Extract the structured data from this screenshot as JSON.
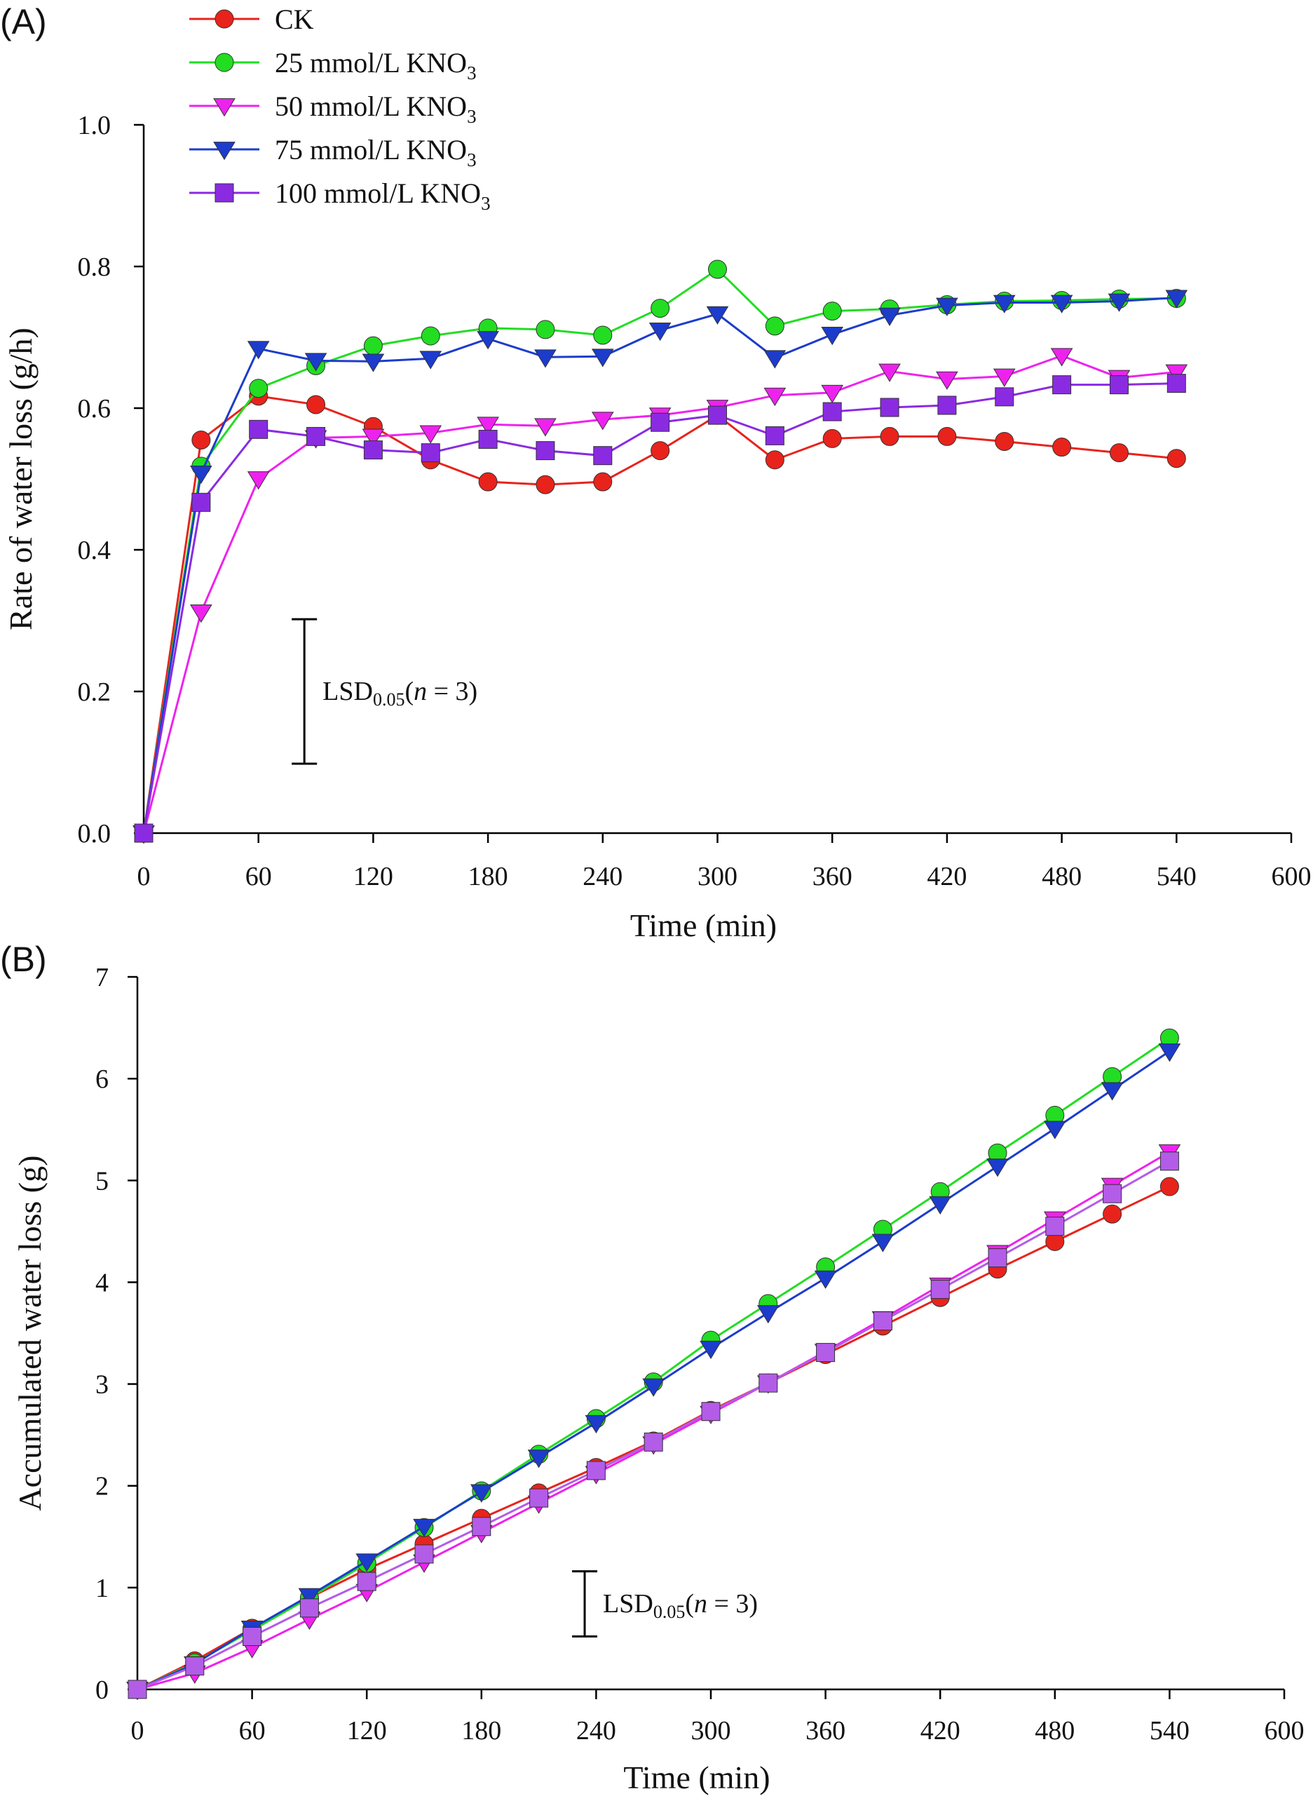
{
  "figure": {
    "panels": [
      {
        "label": "(A)"
      },
      {
        "label": "(B)"
      }
    ]
  },
  "chart_data": [
    {
      "type": "line",
      "panel": "(A)",
      "title": "",
      "xlabel": "Time (min)",
      "ylabel": "Rate of water loss (g/h)",
      "xlim": [
        0,
        600
      ],
      "ylim": [
        0,
        1.0
      ],
      "xticks": [
        0,
        60,
        120,
        180,
        240,
        300,
        360,
        420,
        480,
        540,
        600
      ],
      "yticks": [
        0.0,
        0.2,
        0.4,
        0.6,
        0.8,
        1.0
      ],
      "ytick_labels": [
        "0.0",
        "0.2",
        "0.4",
        "0.6",
        "0.8",
        "1.0"
      ],
      "x": [
        0,
        30,
        60,
        90,
        120,
        150,
        180,
        210,
        240,
        270,
        300,
        330,
        360,
        390,
        420,
        450,
        480,
        510,
        540
      ],
      "legend_position": "top-left",
      "series": [
        {
          "name": "CK",
          "name_sub": "",
          "color": "#e8231c",
          "marker": "circle",
          "values": [
            0,
            0.555,
            0.617,
            0.605,
            0.574,
            0.527,
            0.496,
            0.492,
            0.496,
            0.54,
            0.59,
            0.527,
            0.557,
            0.56,
            0.56,
            0.553,
            0.545,
            0.537,
            0.529
          ]
        },
        {
          "name": "25 mmol/L KNO",
          "name_sub": "3",
          "color": "#22dd22",
          "marker": "circle",
          "values": [
            0,
            0.518,
            0.628,
            0.66,
            0.688,
            0.702,
            0.713,
            0.711,
            0.703,
            0.741,
            0.796,
            0.716,
            0.737,
            0.74,
            0.746,
            0.751,
            0.752,
            0.754,
            0.755
          ]
        },
        {
          "name": "50 mmol/L KNO",
          "name_sub": "3",
          "color": "#ee22ee",
          "marker": "triangle-down",
          "values": [
            0,
            0.312,
            0.5,
            0.558,
            0.56,
            0.565,
            0.577,
            0.575,
            0.584,
            0.59,
            0.601,
            0.618,
            0.622,
            0.652,
            0.641,
            0.645,
            0.674,
            0.643,
            0.651
          ]
        },
        {
          "name": "75 mmol/L KNO",
          "name_sub": "3",
          "color": "#1c3ccc",
          "marker": "triangle-down",
          "values": [
            0,
            0.508,
            0.684,
            0.667,
            0.666,
            0.67,
            0.698,
            0.672,
            0.673,
            0.71,
            0.733,
            0.671,
            0.704,
            0.731,
            0.745,
            0.749,
            0.749,
            0.751,
            0.756
          ]
        },
        {
          "name": "100 mmol/L KNO",
          "name_sub": "3",
          "color": "#8a2be2",
          "marker": "square",
          "values": [
            0,
            0.467,
            0.57,
            0.56,
            0.541,
            0.537,
            0.556,
            0.54,
            0.533,
            0.58,
            0.59,
            0.561,
            0.595,
            0.601,
            0.604,
            0.616,
            0.633,
            0.633,
            0.635
          ]
        }
      ],
      "lsd": {
        "label": "LSD",
        "sub": "0.05",
        "open": "(",
        "n": "n",
        "rest": " = 3)",
        "x": 84,
        "y_low": 0.098,
        "y_high": 0.302
      }
    },
    {
      "type": "line",
      "panel": "(B)",
      "title": "",
      "xlabel": "Time (min)",
      "ylabel": "Accumulated water loss (g)",
      "xlim": [
        0,
        600
      ],
      "ylim": [
        0,
        7
      ],
      "xticks": [
        0,
        60,
        120,
        180,
        240,
        300,
        360,
        420,
        480,
        540,
        600
      ],
      "yticks": [
        0,
        1,
        2,
        3,
        4,
        5,
        6,
        7
      ],
      "ytick_labels": [
        "0",
        "1",
        "2",
        "3",
        "4",
        "5",
        "6",
        "7"
      ],
      "x": [
        0,
        30,
        60,
        90,
        120,
        150,
        180,
        210,
        240,
        270,
        300,
        330,
        360,
        390,
        420,
        450,
        480,
        510,
        540
      ],
      "series": [
        {
          "name": "CK",
          "color": "#e8231c",
          "marker": "circle",
          "values": [
            0,
            0.28,
            0.6,
            0.9,
            1.18,
            1.43,
            1.68,
            1.93,
            2.18,
            2.44,
            2.74,
            3.01,
            3.29,
            3.57,
            3.85,
            4.13,
            4.4,
            4.67,
            4.94
          ]
        },
        {
          "name": "25 mmol/L KNO3",
          "color": "#22dd22",
          "marker": "circle",
          "values": [
            0,
            0.26,
            0.58,
            0.9,
            1.24,
            1.59,
            1.95,
            2.31,
            2.66,
            3.02,
            3.43,
            3.79,
            4.15,
            4.52,
            4.89,
            5.27,
            5.64,
            6.02,
            6.4
          ]
        },
        {
          "name": "50 mmol/L KNO3",
          "color": "#ee22ee",
          "marker": "triangle-down",
          "values": [
            0,
            0.16,
            0.41,
            0.69,
            0.96,
            1.25,
            1.54,
            1.83,
            2.12,
            2.41,
            2.71,
            3.01,
            3.32,
            3.64,
            3.97,
            4.29,
            4.62,
            4.95,
            5.28
          ]
        },
        {
          "name": "75 mmol/L KNO3",
          "color": "#1c3ccc",
          "marker": "triangle-down",
          "values": [
            0,
            0.25,
            0.6,
            0.92,
            1.26,
            1.6,
            1.94,
            2.28,
            2.62,
            2.98,
            3.35,
            3.7,
            4.04,
            4.4,
            4.77,
            5.14,
            5.51,
            5.89,
            6.27
          ]
        },
        {
          "name": "100 mmol/L KNO3",
          "color": "#b35ce8",
          "marker": "square",
          "values": [
            0,
            0.23,
            0.52,
            0.8,
            1.06,
            1.33,
            1.6,
            1.88,
            2.15,
            2.43,
            2.73,
            3.01,
            3.31,
            3.62,
            3.93,
            4.24,
            4.55,
            4.87,
            5.19
          ]
        }
      ],
      "lsd": {
        "label": "LSD",
        "sub": "0.05",
        "open": "(",
        "n": "n",
        "rest": " = 3)",
        "x": 234,
        "y_low": 0.52,
        "y_high": 1.16
      }
    }
  ]
}
